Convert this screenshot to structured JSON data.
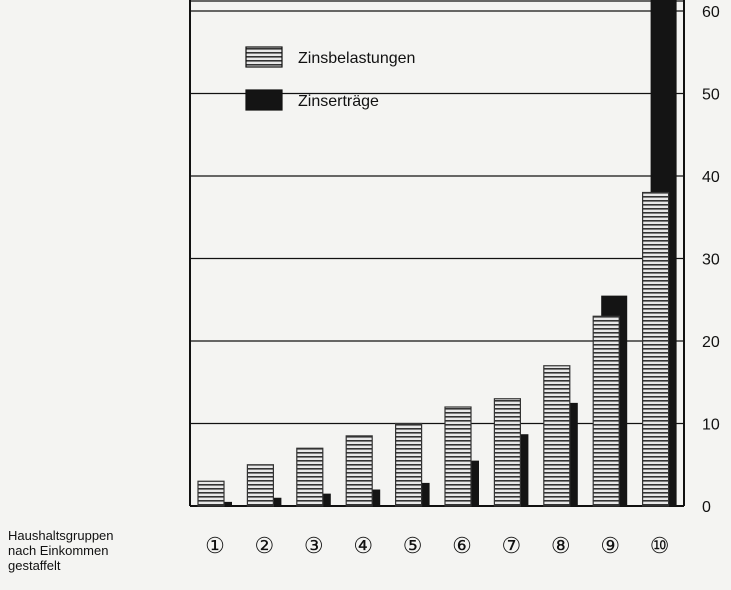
{
  "chart_data": {
    "type": "bar",
    "title": "",
    "xlabel": "Haushaltsgruppen nach Einkommen gestaffelt",
    "xlabel_lines": [
      "Haushaltsgruppen",
      "nach Einkommen",
      "gestaffelt"
    ],
    "ylabel": "",
    "categories": [
      "①",
      "②",
      "③",
      "④",
      "⑤",
      "⑥",
      "⑦",
      "⑧",
      "⑨",
      "⑩"
    ],
    "series": [
      {
        "name": "Zinsbelastungen",
        "values": [
          3,
          5,
          7,
          8.5,
          10,
          12,
          13,
          17,
          23,
          38
        ]
      },
      {
        "name": "Zinserträge",
        "values": [
          0.5,
          1,
          1.5,
          2,
          2.8,
          5.5,
          8.7,
          12.5,
          25.5,
          64
        ]
      }
    ],
    "ylim": [
      0,
      60
    ],
    "yticks": [
      0,
      10,
      20,
      30,
      40,
      50,
      60
    ],
    "grid": true,
    "legend_position": "top-left",
    "colors": {
      "Zinsbelastungen": "#e8e8e8",
      "Zinserträge": "#141414",
      "stripe": "#333333",
      "axis": "#111111"
    }
  }
}
